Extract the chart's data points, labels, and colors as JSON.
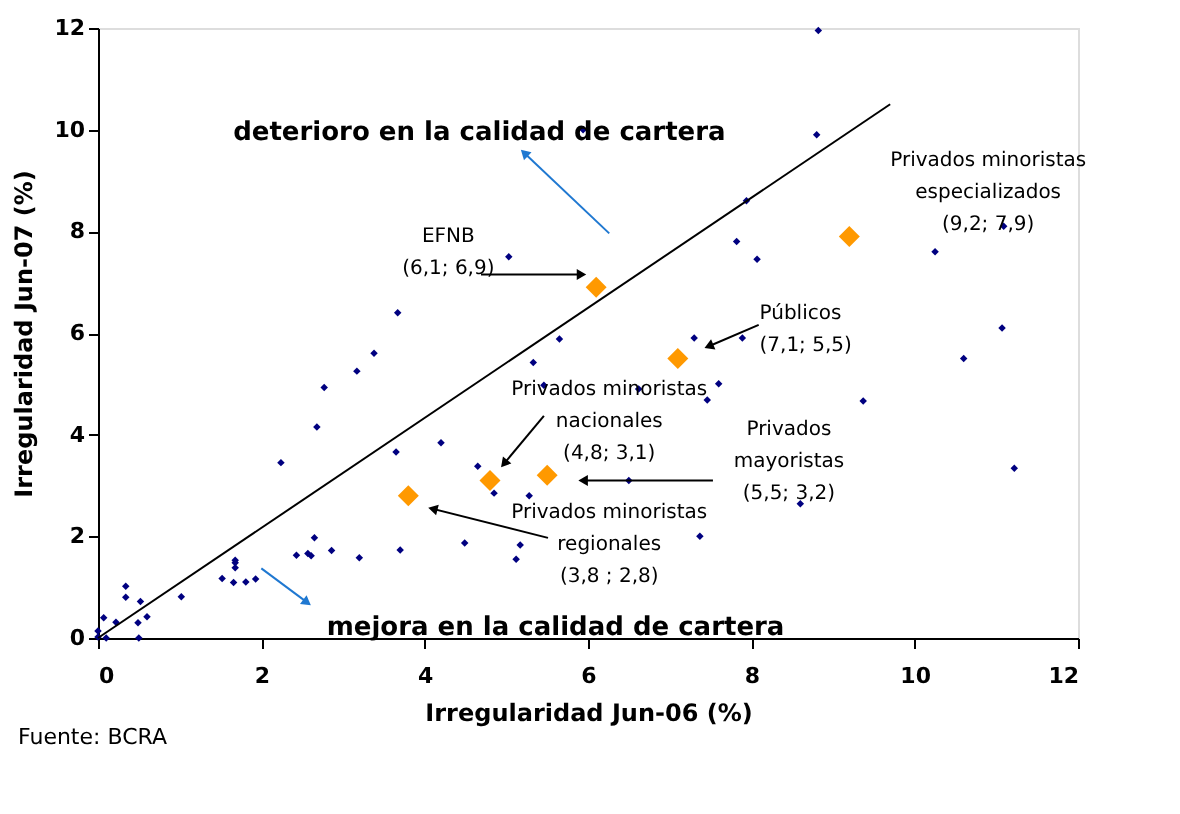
{
  "chart_data": {
    "type": "scatter",
    "xlabel": "Irregularidad Jun-06 (%)",
    "ylabel": "Irregularidad Jun-07 (%)",
    "xlim": [
      0,
      12
    ],
    "ylim": [
      0,
      12
    ],
    "xticks": [
      0,
      2,
      4,
      6,
      8,
      10,
      12
    ],
    "yticks": [
      0,
      2,
      4,
      6,
      8,
      10,
      12
    ],
    "grid": false,
    "marker": "diamond",
    "series": [
      {
        "color": "#000080",
        "x": [
          8.82,
          5.94,
          8.8,
          7.94,
          7.82,
          8.07,
          10.25,
          11.09,
          5.03,
          3.67,
          3.38,
          5.65,
          5.33,
          7.3,
          7.89,
          11.07,
          10.6,
          9.37,
          11.22,
          8.6,
          7.37,
          6.62,
          7.6,
          7.46,
          6.5,
          3.17,
          2.77,
          2.68,
          2.24,
          3.65,
          4.2,
          4.65,
          4.85,
          5.28,
          5.46,
          4.49,
          5.17,
          5.12,
          3.7,
          3.2,
          2.86,
          2.65,
          2.43,
          2.57,
          2.61,
          1.93,
          1.81,
          1.68,
          1.68,
          1.68,
          1.66,
          1.52,
          1.02,
          0.34,
          0.34,
          0.52,
          0.49,
          0.5,
          0.6,
          0.22,
          0.07,
          0,
          0,
          0.1
        ],
        "values": [
          11.95,
          10.0,
          9.9,
          8.6,
          7.8,
          7.45,
          7.6,
          8.1,
          7.5,
          6.4,
          5.6,
          5.88,
          5.42,
          5.9,
          5.9,
          6.1,
          5.5,
          4.66,
          3.34,
          2.64,
          2.0,
          4.9,
          5.0,
          4.68,
          3.1,
          5.25,
          4.93,
          4.15,
          3.45,
          3.66,
          3.84,
          3.38,
          2.85,
          2.8,
          4.97,
          1.87,
          1.83,
          1.55,
          1.73,
          1.58,
          1.72,
          1.97,
          1.63,
          1.66,
          1.62,
          1.16,
          1.1,
          1.48,
          1.38,
          1.53,
          1.09,
          1.17,
          0.81,
          1.02,
          0.8,
          0.72,
          0.3,
          0,
          0.42,
          0.31,
          0.4,
          0.14,
          0.02,
          0
        ]
      },
      {
        "color": "#ff9900",
        "x": [
          6.1,
          7.1,
          9.2,
          4.8,
          5.5,
          3.8
        ],
        "values": [
          6.9,
          5.5,
          7.9,
          3.1,
          3.2,
          2.8
        ]
      },
      {
        "type": "line",
        "color": "#000000",
        "marker": "none",
        "line_style": "solid",
        "x": [
          0,
          9.7
        ],
        "values": [
          0,
          10.5
        ]
      }
    ],
    "annotations": [
      "deterioro en  la calidad de cartera",
      "mejora en la calidad de cartera",
      "EFNB\n(6,1; 6,9)",
      "Privados minoristas\nespecializados\n(9,2; 7,9)",
      "Públicos\n(7,1; 5,5)",
      {
        "text": "Privados minoristas\nnacionales\n(4,8; 3,1)",
        "x": 4.8,
        "y": 3.1
      },
      "Privados\nmayoristas\n(5,5; 3,2)",
      "Privados minoristas\nregionales\n(3,8 ; 2,8)",
      "Fuente: BCRA"
    ]
  }
}
